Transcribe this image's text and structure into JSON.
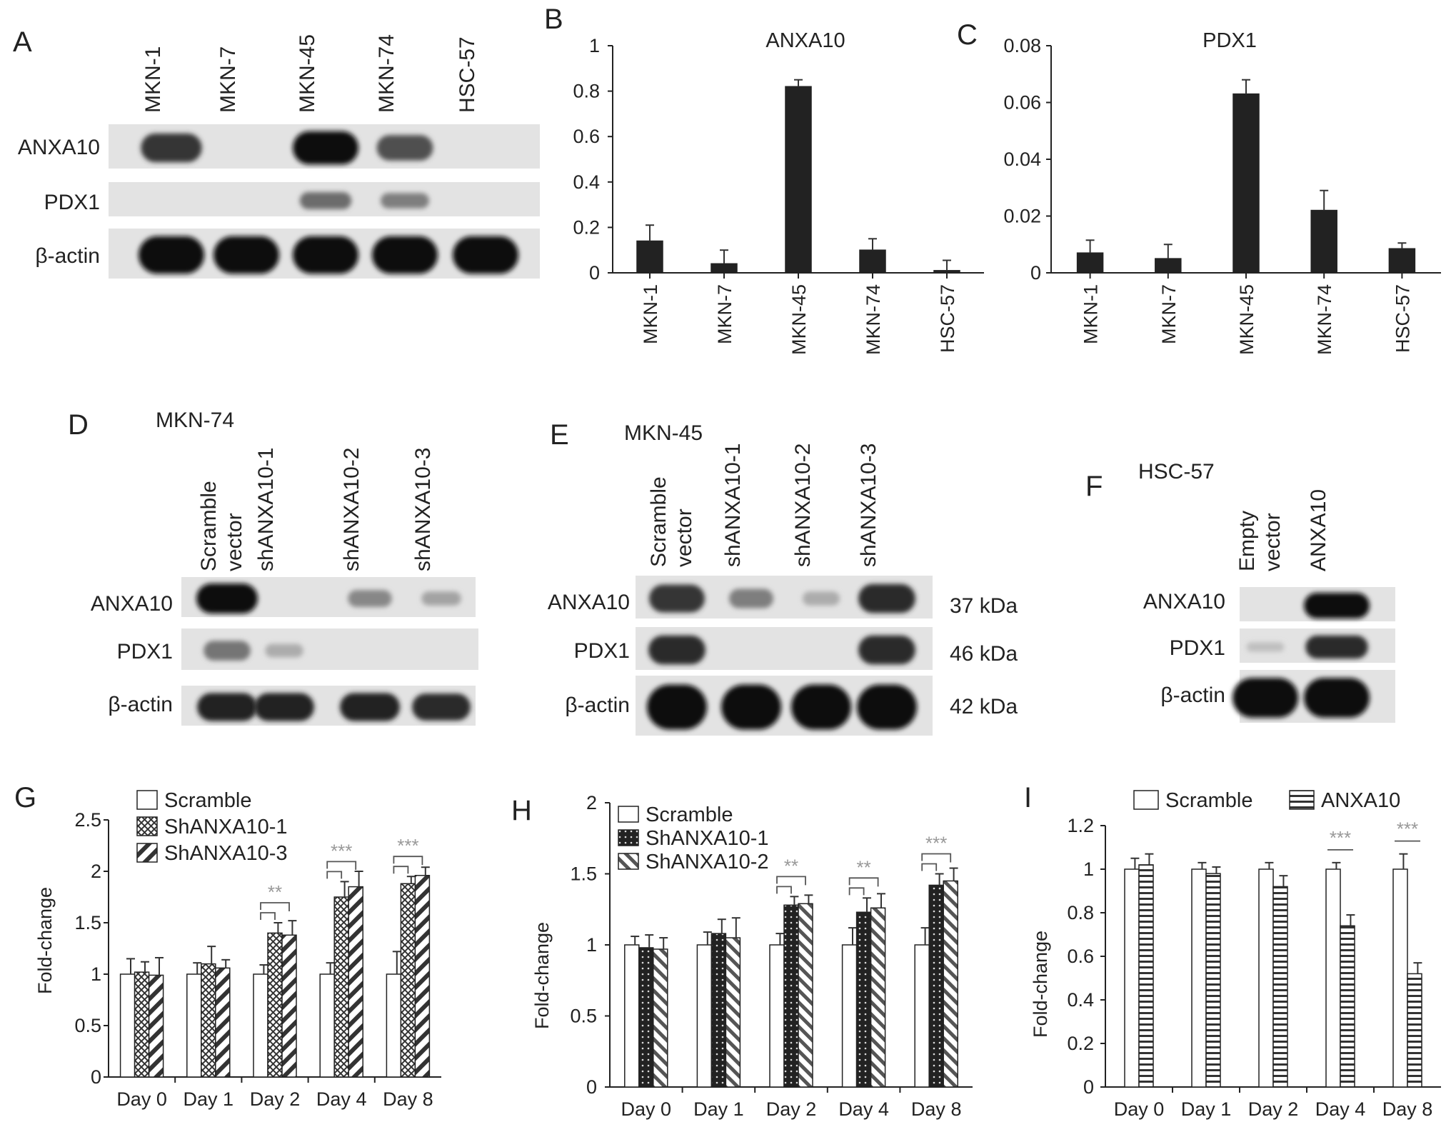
{
  "panels": {
    "A": "A",
    "B": "B",
    "C": "C",
    "D": "D",
    "E": "E",
    "F": "F",
    "G": "G",
    "H": "H",
    "I": "I"
  },
  "blot_A": {
    "lanes": [
      "MKN-1",
      "MKN-7",
      "MKN-45",
      "MKN-74",
      "HSC-57"
    ],
    "rows": [
      "ANXA10",
      "PDX1",
      "β-actin"
    ],
    "intensity": {
      "ANXA10": [
        0.8,
        0,
        1.0,
        0.65,
        0
      ],
      "PDX1": [
        0,
        0,
        0.5,
        0.4,
        0
      ],
      "β-actin": [
        1,
        1,
        1,
        1,
        1
      ]
    }
  },
  "blot_D": {
    "cell_line": "MKN-74",
    "lanes": [
      [
        "Scramble",
        "vector"
      ],
      [
        "shANXA10-1"
      ],
      [
        "shANXA10-2"
      ],
      [
        "shANXA10-3"
      ]
    ],
    "rows": [
      "ANXA10",
      "PDX1",
      "β-actin"
    ],
    "intensity": {
      "ANXA10": [
        1.0,
        0,
        0.35,
        0.2
      ],
      "PDX1": [
        0.45,
        0.15,
        0,
        0
      ],
      "β-actin": [
        0.9,
        0.9,
        0.9,
        0.85
      ]
    }
  },
  "blot_E": {
    "cell_line": "MKN-45",
    "lanes": [
      [
        "Scramble",
        "vector"
      ],
      [
        "shANXA10-1"
      ],
      [
        "shANXA10-2"
      ],
      [
        "shANXA10-3"
      ]
    ],
    "rows": [
      "ANXA10",
      "PDX1",
      "β-actin"
    ],
    "kda": [
      "37 kDa",
      "46 kDa",
      "42 kDa"
    ],
    "intensity": {
      "ANXA10": [
        0.8,
        0.4,
        0.15,
        0.85
      ],
      "PDX1": [
        0.85,
        0,
        0,
        0.85
      ],
      "β-actin": [
        1,
        1,
        1,
        1
      ]
    }
  },
  "blot_F": {
    "cell_line": "HSC-57",
    "lanes": [
      [
        "Empty",
        "vector"
      ],
      [
        "ANXA10"
      ]
    ],
    "rows": [
      "ANXA10",
      "PDX1",
      "β-actin"
    ],
    "intensity": {
      "ANXA10": [
        0,
        1.0
      ],
      "PDX1": [
        0.05,
        0.85
      ],
      "β-actin": [
        1,
        1
      ]
    }
  },
  "chart_data": [
    {
      "id": "B",
      "type": "bar",
      "title": "ANXA10",
      "categories": [
        "MKN-1",
        "MKN-7",
        "MKN-45",
        "MKN-74",
        "HSC-57"
      ],
      "values": [
        0.14,
        0.04,
        0.82,
        0.1,
        0.01
      ],
      "errors": [
        0.07,
        0.06,
        0.03,
        0.05,
        0.045
      ],
      "ylim": [
        0,
        1
      ],
      "yticks": [
        "0",
        "0.2",
        "0.4",
        "0.6",
        "0.8",
        "1"
      ],
      "ytick_values": [
        0,
        0.2,
        0.4,
        0.6,
        0.8,
        1
      ]
    },
    {
      "id": "C",
      "type": "bar",
      "title": "PDX1",
      "categories": [
        "MKN-1",
        "MKN-7",
        "MKN-45",
        "MKN-74",
        "HSC-57"
      ],
      "values": [
        0.007,
        0.005,
        0.063,
        0.022,
        0.0085
      ],
      "errors": [
        0.0045,
        0.005,
        0.005,
        0.007,
        0.002
      ],
      "ylim": [
        0,
        0.08
      ],
      "yticks": [
        "0",
        "0.02",
        "0.04",
        "0.06",
        "0.08"
      ],
      "ytick_values": [
        0,
        0.02,
        0.04,
        0.06,
        0.08
      ]
    },
    {
      "id": "G",
      "type": "bar",
      "ylabel": "Fold-change",
      "categories": [
        "Day 0",
        "Day 1",
        "Day 2",
        "Day 4",
        "Day 8"
      ],
      "ylim": [
        0,
        2.5
      ],
      "yticks": [
        "0",
        "0.5",
        "1",
        "1.5",
        "2",
        "2.5"
      ],
      "ytick_values": [
        0,
        0.5,
        1,
        1.5,
        2,
        2.5
      ],
      "series": [
        {
          "name": "Scramble",
          "pattern": "open",
          "values": [
            1,
            1,
            1,
            1,
            1
          ],
          "errors": [
            0.15,
            0.11,
            0.09,
            0.11,
            0.22
          ]
        },
        {
          "name": "ShANXA10-1",
          "pattern": "cross",
          "values": [
            1.02,
            1.1,
            1.4,
            1.75,
            1.88
          ],
          "errors": [
            0.1,
            0.17,
            0.1,
            0.15,
            0.07
          ]
        },
        {
          "name": "ShANXA10-3",
          "pattern": "diag",
          "values": [
            0.99,
            1.06,
            1.38,
            1.85,
            1.96
          ],
          "errors": [
            0.17,
            0.08,
            0.14,
            0.15,
            0.08
          ]
        }
      ],
      "significance": [
        {
          "category": 2,
          "label": "**"
        },
        {
          "category": 3,
          "label": "***"
        },
        {
          "category": 4,
          "label": "***"
        }
      ]
    },
    {
      "id": "H",
      "type": "bar",
      "ylabel": "Fold-change",
      "categories": [
        "Day 0",
        "Day 1",
        "Day 2",
        "Day 4",
        "Day 8"
      ],
      "ylim": [
        0,
        2
      ],
      "yticks": [
        "0",
        "0.5",
        "1",
        "1.5",
        "2"
      ],
      "ytick_values": [
        0,
        0.5,
        1,
        1.5,
        2
      ],
      "series": [
        {
          "name": "Scramble",
          "pattern": "open",
          "values": [
            1,
            1,
            1,
            1,
            1
          ],
          "errors": [
            0.06,
            0.09,
            0.08,
            0.12,
            0.12
          ]
        },
        {
          "name": "ShANXA10-1",
          "pattern": "dots",
          "values": [
            0.98,
            1.08,
            1.28,
            1.23,
            1.42
          ],
          "errors": [
            0.09,
            0.1,
            0.06,
            0.1,
            0.08
          ]
        },
        {
          "name": "ShANXA10-2",
          "pattern": "diag2",
          "values": [
            0.97,
            1.05,
            1.29,
            1.26,
            1.45
          ],
          "errors": [
            0.08,
            0.14,
            0.06,
            0.1,
            0.09
          ]
        }
      ],
      "significance": [
        {
          "category": 2,
          "label": "**"
        },
        {
          "category": 3,
          "label": "**"
        },
        {
          "category": 4,
          "label": "***"
        }
      ]
    },
    {
      "id": "I",
      "type": "bar",
      "ylabel": "Fold-change",
      "categories": [
        "Day 0",
        "Day 1",
        "Day 2",
        "Day 4",
        "Day 8"
      ],
      "ylim": [
        0,
        1.2
      ],
      "yticks": [
        "0",
        "0.2",
        "0.4",
        "0.6",
        "0.8",
        "1",
        "1.2"
      ],
      "ytick_values": [
        0,
        0.2,
        0.4,
        0.6,
        0.8,
        1,
        1.2
      ],
      "series": [
        {
          "name": "Scramble",
          "pattern": "open",
          "values": [
            1,
            1,
            1,
            1,
            1
          ],
          "errors": [
            0.05,
            0.03,
            0.03,
            0.03,
            0.07
          ]
        },
        {
          "name": "ANXA10",
          "pattern": "hlines",
          "values": [
            1.02,
            0.98,
            0.92,
            0.74,
            0.52
          ],
          "errors": [
            0.05,
            0.03,
            0.05,
            0.05,
            0.05
          ]
        }
      ],
      "significance": [
        {
          "category": 3,
          "label": "***"
        },
        {
          "category": 4,
          "label": "***"
        }
      ]
    }
  ]
}
